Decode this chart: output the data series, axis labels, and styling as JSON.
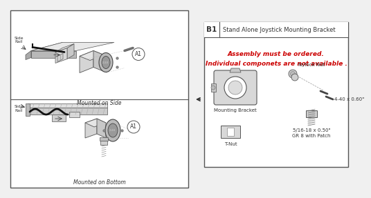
{
  "title": "Stand Alone Joystick Mounting Bracket",
  "part_number": "B1",
  "assembly_note_line1": "Assembly must be ordered.",
  "assembly_note_line2": "Individual componets are not available .",
  "note_color": "#cc0000",
  "bg_color": "#f0f0f0",
  "border_color": "#555555",
  "left_panel_label_top": "Mounted on Side",
  "left_panel_label_bottom": "Mounted on Bottom",
  "label_mounting_bracket": "Mounting Bracket",
  "label_tnut": "T-Nut",
  "label_nylock": "Nylock Nut",
  "label_screw_small": "4-40 x 0.60\"",
  "label_screw_large_1": "5/16-18 x 0.50\"",
  "label_screw_large_2": "GR 8 with Patch"
}
